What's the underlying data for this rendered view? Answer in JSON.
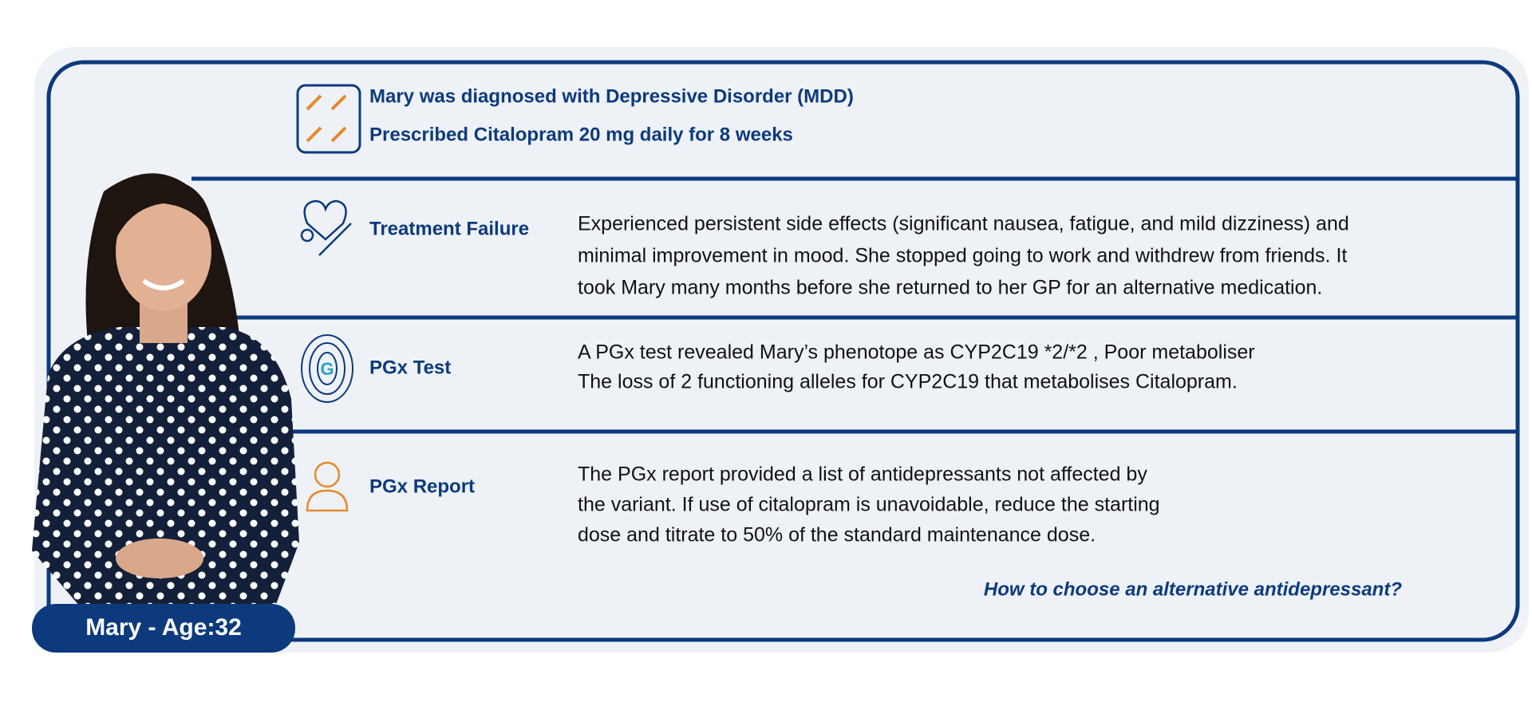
{
  "header": {
    "lines": [
      "Mary was diagnosed with Depressive Disorder (MDD)",
      "Prescribed Citalopram 20 mg daily for 8 weeks"
    ]
  },
  "sections": [
    {
      "label": "Treatment Failure",
      "lines": [
        "Experienced persistent side effects (significant nausea, fatigue, and mild dizziness) and",
        "minimal improvement in mood. She stopped going to work and withdrew from friends.  It",
        "took Mary many months before she returned to her GP for an alternative medication."
      ]
    },
    {
      "label": "PGx Test",
      "lines": [
        "A PGx test revealed Mary’s  phenotope as CYP2C19 *2/*2 , Poor metaboliser",
        "The loss of 2 functioning alleles for CYP2C19 that metabolises Citalopram."
      ]
    },
    {
      "label": "PGx Report",
      "lines": [
        "The PGx report provided a list of antidepressants not affected by",
        "the variant. If use of citalopram is unavoidable, reduce the starting",
        "dose and titrate to 50% of the standard maintenance dose."
      ]
    }
  ],
  "question": "How to choose an alternative antidepressant?",
  "badge": "Mary - Age:32"
}
